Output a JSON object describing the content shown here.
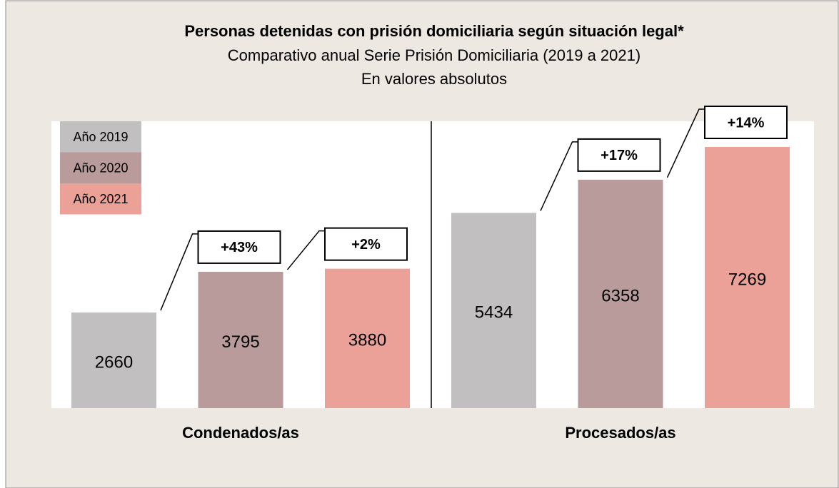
{
  "chart_data": {
    "type": "bar",
    "title": "Personas detenidas con prisión domiciliaria según situación legal*",
    "subtitle": [
      "Comparativo anual Serie Prisión Domiciliaria (2019 a 2021)",
      "En valores absolutos"
    ],
    "categories": [
      "Condenados/as",
      "Procesados/as"
    ],
    "series": [
      {
        "name": "Año 2019",
        "color": "#c1bfbf",
        "values": [
          2660,
          5434
        ]
      },
      {
        "name": "Año 2020",
        "color": "#b99b9c",
        "values": [
          3795,
          6358
        ]
      },
      {
        "name": "Año 2021",
        "color": "#eba197",
        "values": [
          3880,
          7269
        ]
      }
    ],
    "annotations": [
      "+43%",
      "+2%",
      "+17%",
      "+14%"
    ]
  }
}
